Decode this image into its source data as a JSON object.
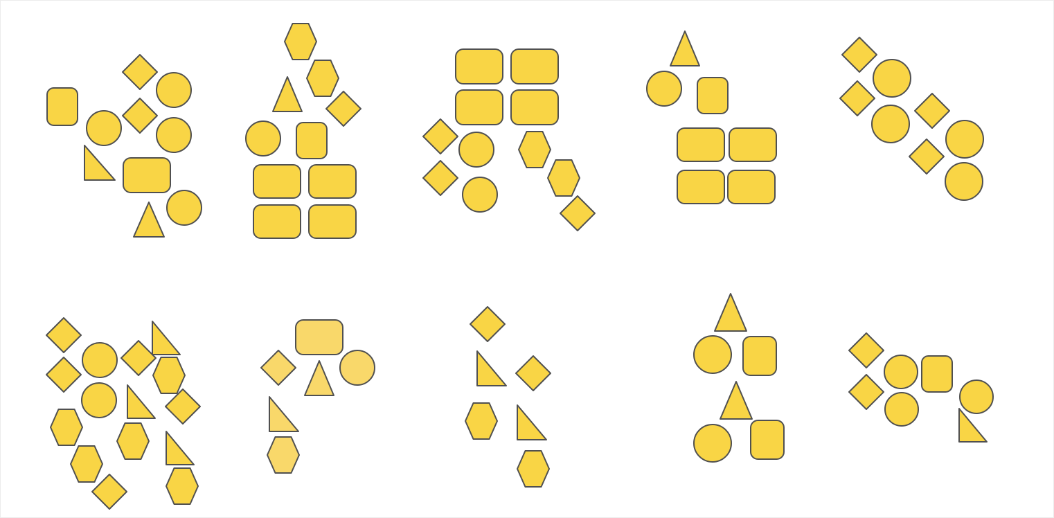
{
  "colors": {
    "background": "#ffffff",
    "shape_fill": "#f9d545",
    "shape_fill_light": "#f9d86a",
    "shape_stroke": "#505050"
  },
  "groups": [
    {
      "id": "group-1",
      "shapes": [
        {
          "type": "rounded-square"
        },
        {
          "type": "diamond"
        },
        {
          "type": "circle"
        },
        {
          "type": "circle"
        },
        {
          "type": "diamond"
        },
        {
          "type": "circle"
        },
        {
          "type": "right-triangle"
        },
        {
          "type": "rounded-rect"
        },
        {
          "type": "triangle"
        },
        {
          "type": "circle"
        }
      ]
    },
    {
      "id": "group-2",
      "shapes": [
        {
          "type": "hexagon"
        },
        {
          "type": "hexagon"
        },
        {
          "type": "triangle"
        },
        {
          "type": "diamond"
        },
        {
          "type": "circle"
        },
        {
          "type": "rounded-square"
        },
        {
          "type": "rounded-rect"
        },
        {
          "type": "rounded-rect"
        },
        {
          "type": "rounded-rect"
        },
        {
          "type": "rounded-rect"
        }
      ]
    },
    {
      "id": "group-3",
      "shapes": [
        {
          "type": "rounded-rect"
        },
        {
          "type": "rounded-rect"
        },
        {
          "type": "rounded-rect"
        },
        {
          "type": "rounded-rect"
        },
        {
          "type": "diamond"
        },
        {
          "type": "circle"
        },
        {
          "type": "hexagon"
        },
        {
          "type": "diamond"
        },
        {
          "type": "hexagon"
        },
        {
          "type": "circle"
        },
        {
          "type": "diamond"
        }
      ]
    },
    {
      "id": "group-4",
      "shapes": [
        {
          "type": "triangle"
        },
        {
          "type": "circle"
        },
        {
          "type": "rounded-square"
        },
        {
          "type": "rounded-rect"
        },
        {
          "type": "rounded-rect"
        },
        {
          "type": "rounded-rect"
        },
        {
          "type": "rounded-rect"
        }
      ]
    },
    {
      "id": "group-5",
      "shapes": [
        {
          "type": "diamond"
        },
        {
          "type": "circle"
        },
        {
          "type": "diamond"
        },
        {
          "type": "circle"
        },
        {
          "type": "diamond"
        },
        {
          "type": "circle"
        },
        {
          "type": "diamond"
        },
        {
          "type": "circle"
        }
      ]
    },
    {
      "id": "group-6",
      "shapes": [
        {
          "type": "diamond"
        },
        {
          "type": "right-triangle"
        },
        {
          "type": "diamond"
        },
        {
          "type": "circle"
        },
        {
          "type": "diamond"
        },
        {
          "type": "hexagon"
        },
        {
          "type": "circle"
        },
        {
          "type": "right-triangle"
        },
        {
          "type": "diamond"
        },
        {
          "type": "hexagon"
        },
        {
          "type": "hexagon"
        },
        {
          "type": "right-triangle"
        },
        {
          "type": "hexagon"
        },
        {
          "type": "diamond"
        },
        {
          "type": "hexagon"
        }
      ]
    },
    {
      "id": "group-7",
      "shapes": [
        {
          "type": "rounded-rect"
        },
        {
          "type": "diamond"
        },
        {
          "type": "triangle"
        },
        {
          "type": "circle"
        },
        {
          "type": "right-triangle"
        },
        {
          "type": "hexagon"
        }
      ]
    },
    {
      "id": "group-8",
      "shapes": [
        {
          "type": "diamond"
        },
        {
          "type": "right-triangle"
        },
        {
          "type": "diamond"
        },
        {
          "type": "hexagon"
        },
        {
          "type": "right-triangle"
        },
        {
          "type": "hexagon"
        }
      ]
    },
    {
      "id": "group-9",
      "shapes": [
        {
          "type": "triangle"
        },
        {
          "type": "circle"
        },
        {
          "type": "rounded-square"
        },
        {
          "type": "triangle"
        },
        {
          "type": "circle"
        },
        {
          "type": "rounded-square"
        }
      ]
    },
    {
      "id": "group-10",
      "shapes": [
        {
          "type": "diamond"
        },
        {
          "type": "circle"
        },
        {
          "type": "rounded-square"
        },
        {
          "type": "diamond"
        },
        {
          "type": "circle"
        },
        {
          "type": "circle"
        },
        {
          "type": "right-triangle"
        }
      ]
    }
  ]
}
